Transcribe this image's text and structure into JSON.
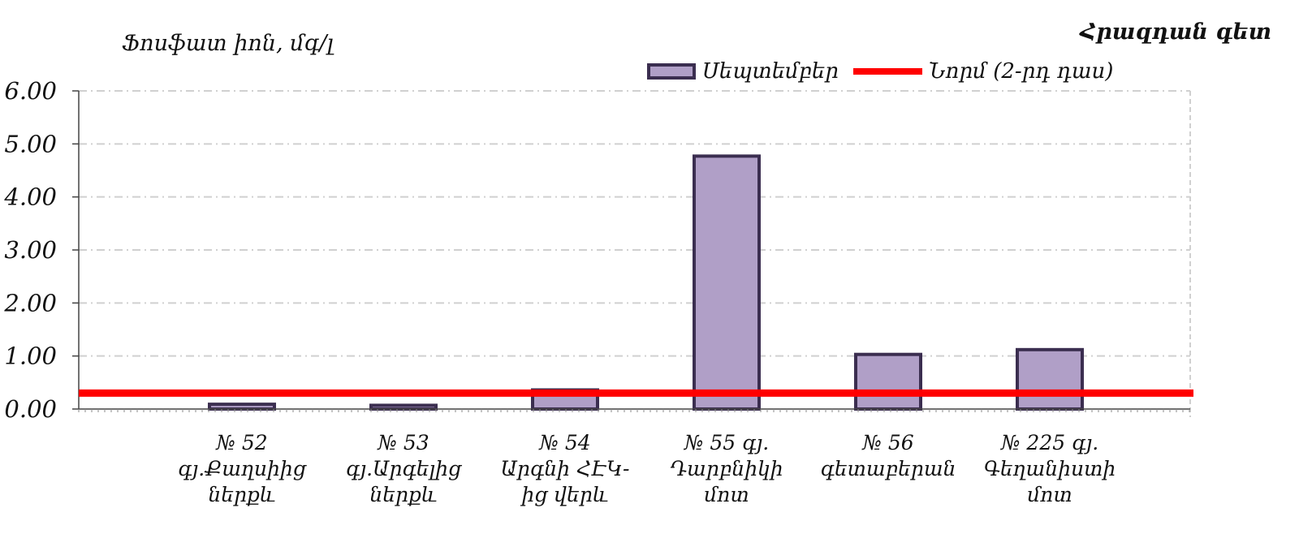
{
  "chart_data": {
    "type": "bar",
    "title": "Հրազդան գետ",
    "ylabel": "Ֆոսֆատ իոն, մգ/լ",
    "xlabel": "",
    "ylim": [
      0,
      6
    ],
    "yticks": [
      "0.00",
      "1.00",
      "2.00",
      "3.00",
      "4.00",
      "5.00",
      "6.00"
    ],
    "grid": true,
    "legend_position": "top-right",
    "categories": [
      [
        "№ 52",
        "գյ.Քաղսիից",
        "ներքև"
      ],
      [
        "№ 53",
        "գյ.Արգելից",
        "ներքև"
      ],
      [
        "№ 54",
        "Արգնի ՀԷԿ-",
        "ից  վերև"
      ],
      [
        "№ 55 գյ.",
        "Դարբնիկի",
        "մոտ"
      ],
      [
        "№ 56",
        "գետաբերան",
        ""
      ],
      [
        "№ 225 գյ.",
        "Գեղանիստի",
        "մոտ"
      ]
    ],
    "category_x": [
      1,
      2,
      3,
      4,
      5,
      6
    ],
    "series": [
      {
        "name": "Սեպտեմբեր",
        "type": "bar",
        "color": "#b09fc7",
        "edge_color": "#3b2e50",
        "values": [
          0.09,
          0.07,
          0.36,
          4.77,
          1.03,
          1.12
        ]
      },
      {
        "name": "Նորմ (2-րդ դաս)",
        "type": "line",
        "color": "#ff0000",
        "value": 0.3
      }
    ]
  }
}
